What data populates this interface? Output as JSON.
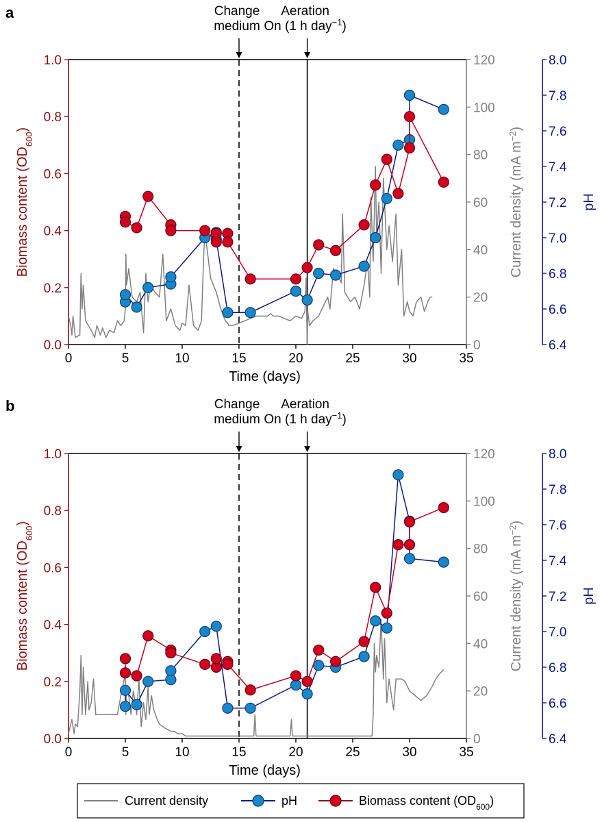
{
  "chart_data": [
    {
      "panel_label": "a",
      "type": "line",
      "xlabel": "Time (days)",
      "ylabel_left": "Biomass content (OD",
      "ylabel_left_sub": "600",
      "ylabel_left_end": ")",
      "ylabel_mid": "Current density (mA m",
      "ylabel_mid_sup": "−2",
      "ylabel_mid_end": ")",
      "ylabel_right": "pH",
      "xlim": [
        0,
        35
      ],
      "ylim_left": [
        0,
        1.0
      ],
      "ylim_mid": [
        0,
        120
      ],
      "ylim_right": [
        6.4,
        8.0
      ],
      "xticks": [
        "0",
        "5",
        "10",
        "15",
        "20",
        "25",
        "30",
        "35"
      ],
      "yticks_left": [
        "0.0",
        "0.2",
        "0.4",
        "0.6",
        "0.8",
        "1.0"
      ],
      "yticks_mid": [
        "0",
        "20",
        "40",
        "60",
        "80",
        "100",
        "120"
      ],
      "yticks_right": [
        "6.4",
        "6.6",
        "6.8",
        "7.0",
        "7.2",
        "7.4",
        "7.6",
        "7.8",
        "8.0"
      ],
      "annotations": [
        {
          "x": 15,
          "line_style": "dashed",
          "text_lines": [
            "Change",
            "medium"
          ]
        },
        {
          "x": 21,
          "line_style": "solid",
          "text_lines": [
            "Aeration",
            "On (1 h day"
          ],
          "sup": "−1",
          "end": ")"
        }
      ],
      "series": [
        {
          "name": "Biomass content (OD600)",
          "axis": "left",
          "color": "#c0001a",
          "x": [
            5,
            5,
            6,
            7,
            9,
            9,
            12,
            13,
            13,
            14,
            14,
            16,
            20,
            21,
            22,
            23.5,
            26,
            27,
            28,
            29,
            30,
            30,
            33
          ],
          "y": [
            0.45,
            0.43,
            0.41,
            0.52,
            0.42,
            0.4,
            0.4,
            0.36,
            0.39,
            0.39,
            0.36,
            0.23,
            0.23,
            0.27,
            0.35,
            0.33,
            0.42,
            0.56,
            0.65,
            0.53,
            0.69,
            0.8,
            0.57
          ],
          "path_order": [
            0,
            1,
            2,
            3,
            4,
            5,
            6,
            7,
            8,
            9,
            10,
            11,
            12,
            13,
            14,
            15,
            16,
            17,
            18,
            19,
            20,
            21,
            22
          ]
        },
        {
          "name": "pH",
          "axis": "right",
          "color": "#0b1a80",
          "x": [
            5,
            5,
            6,
            7,
            9,
            9,
            12,
            13,
            13,
            14,
            16,
            20,
            21,
            22,
            23.5,
            26,
            27,
            28,
            29,
            30,
            30,
            33
          ],
          "y": [
            6.64,
            6.68,
            6.61,
            6.72,
            6.74,
            6.78,
            7.0,
            7.03,
            6.99,
            6.58,
            6.58,
            6.7,
            6.65,
            6.8,
            6.79,
            6.84,
            7.0,
            7.22,
            7.52,
            7.55,
            7.8,
            7.72
          ],
          "path_order": [
            0,
            1,
            2,
            3,
            4,
            5,
            6,
            7,
            8,
            9,
            10,
            11,
            12,
            13,
            14,
            15,
            16,
            17,
            18,
            19,
            20,
            21
          ]
        },
        {
          "name": "Current density",
          "axis": "mid",
          "color": "#808080",
          "x": [
            0,
            0.2,
            0.3,
            0.4,
            0.6,
            1.0,
            1.1,
            1.2,
            1.3,
            1.5,
            2.0,
            2.3,
            2.5,
            2.8,
            3.0,
            3.3,
            3.6,
            4.0,
            4.3,
            4.6,
            4.9,
            5.0,
            5.05,
            5.1,
            5.3,
            5.6,
            6.0,
            6.3,
            6.6,
            6.8,
            7.0,
            7.2,
            7.6,
            8.0,
            8.3,
            8.6,
            9.0,
            9.4,
            9.8,
            10.0,
            10.3,
            10.6,
            11.0,
            11.4,
            11.7,
            11.9,
            12.0,
            12.2,
            12.5,
            13.0,
            13.4,
            13.8,
            14.0,
            14.1,
            14.4,
            15.0,
            15.5,
            16.0,
            16.5,
            17.0,
            17.5,
            17.8,
            18.0,
            18.5,
            19.0,
            19.5,
            20.0,
            20.5,
            20.8,
            20.9,
            21.0,
            21.05,
            21.2,
            21.5,
            22.0,
            22.4,
            22.8,
            23.0,
            23.3,
            23.6,
            24.0,
            24.1,
            24.3,
            24.8,
            25.2,
            25.6,
            26.0,
            26.3,
            26.5,
            26.6,
            26.8,
            27.0,
            27.1,
            27.3,
            27.5,
            27.7,
            28.0,
            28.2,
            28.5,
            28.8,
            29.0,
            29.3,
            29.5,
            29.8,
            30.0,
            30.3,
            30.6,
            31.0,
            31.3,
            31.6,
            31.8,
            32.0
          ],
          "y": [
            12,
            8,
            4,
            12,
            3,
            4,
            30,
            15,
            25,
            10,
            6,
            3,
            8,
            4,
            7,
            3,
            6,
            5,
            10,
            8,
            10,
            15,
            38,
            25,
            32,
            20,
            18,
            22,
            5,
            30,
            18,
            25,
            22,
            20,
            38,
            10,
            15,
            8,
            6,
            9,
            8,
            25,
            8,
            6,
            10,
            38,
            48,
            40,
            28,
            22,
            15,
            10,
            9,
            8,
            8,
            9,
            10,
            11,
            12,
            12,
            12,
            13,
            12,
            12,
            11,
            10,
            12,
            11,
            14,
            28,
            0,
            14,
            8,
            10,
            12,
            16,
            20,
            15,
            32,
            30,
            26,
            55,
            22,
            18,
            20,
            15,
            25,
            35,
            20,
            62,
            35,
            75,
            45,
            60,
            30,
            70,
            40,
            50,
            35,
            55,
            25,
            40,
            12,
            18,
            14,
            12,
            18,
            20,
            14,
            18,
            20,
            20
          ]
        }
      ]
    },
    {
      "panel_label": "b",
      "type": "line",
      "xlabel": "Time (days)",
      "ylabel_left": "Biomass content (OD",
      "ylabel_left_sub": "600",
      "ylabel_left_end": ")",
      "ylabel_mid": "Current density (mA m",
      "ylabel_mid_sup": "−2",
      "ylabel_mid_end": ")",
      "ylabel_right": "pH",
      "xlim": [
        0,
        35
      ],
      "ylim_left": [
        0,
        1.0
      ],
      "ylim_mid": [
        0,
        120
      ],
      "ylim_right": [
        6.4,
        8.0
      ],
      "xticks": [
        "0",
        "5",
        "10",
        "15",
        "20",
        "25",
        "30",
        "35"
      ],
      "yticks_left": [
        "0.0",
        "0.2",
        "0.4",
        "0.6",
        "0.8",
        "1.0"
      ],
      "yticks_mid": [
        "0",
        "20",
        "40",
        "60",
        "80",
        "100",
        "120"
      ],
      "yticks_right": [
        "6.4",
        "6.6",
        "6.8",
        "7.0",
        "7.2",
        "7.4",
        "7.6",
        "7.8",
        "8.0"
      ],
      "annotations": [
        {
          "x": 15,
          "line_style": "dashed",
          "text_lines": [
            "Change",
            "medium"
          ]
        },
        {
          "x": 21,
          "line_style": "solid",
          "text_lines": [
            "Aeration",
            "On (1 h day"
          ],
          "sup": "−1",
          "end": ")"
        }
      ],
      "series": [
        {
          "name": "Biomass content (OD600)",
          "axis": "left",
          "color": "#c0001a",
          "x": [
            5,
            5,
            6,
            7,
            9,
            9,
            12,
            13,
            13,
            14,
            14,
            16,
            20,
            21,
            22,
            23.5,
            26,
            27,
            28,
            29,
            30,
            30,
            33
          ],
          "y": [
            0.28,
            0.23,
            0.22,
            0.36,
            0.31,
            0.3,
            0.26,
            0.25,
            0.28,
            0.27,
            0.26,
            0.17,
            0.22,
            0.2,
            0.31,
            0.27,
            0.34,
            0.53,
            0.44,
            0.68,
            0.68,
            0.76,
            0.81
          ],
          "path_order": [
            0,
            1,
            2,
            3,
            4,
            5,
            6,
            7,
            8,
            9,
            10,
            11,
            12,
            13,
            14,
            15,
            16,
            17,
            18,
            19,
            20,
            21,
            22
          ]
        },
        {
          "name": "pH",
          "axis": "right",
          "color": "#0b1a80",
          "x": [
            5,
            5,
            6,
            7,
            9,
            9,
            12,
            13,
            14,
            16,
            20,
            21,
            22,
            23.5,
            26,
            27,
            28,
            29,
            30,
            30,
            33
          ],
          "y": [
            6.58,
            6.67,
            6.59,
            6.72,
            6.73,
            6.78,
            7.0,
            7.03,
            6.57,
            6.57,
            6.7,
            6.65,
            6.81,
            6.8,
            6.86,
            7.06,
            7.02,
            7.88,
            7.62,
            7.41,
            7.39
          ],
          "path_order": [
            0,
            1,
            2,
            3,
            4,
            5,
            6,
            7,
            8,
            9,
            10,
            11,
            12,
            13,
            14,
            15,
            16,
            17,
            18,
            19,
            20
          ]
        },
        {
          "name": "Current density",
          "axis": "mid",
          "color": "#808080",
          "x": [
            0,
            0.3,
            0.5,
            0.6,
            0.8,
            1.0,
            1.1,
            1.2,
            1.3,
            1.5,
            1.7,
            1.8,
            2.0,
            2.2,
            2.4,
            2.6,
            3.0,
            3.5,
            4.0,
            4.3,
            4.6,
            4.9,
            5.0,
            5.05,
            5.1,
            5.3,
            5.5,
            5.7,
            5.9,
            6.0,
            6.2,
            6.4,
            6.6,
            6.8,
            7.0,
            7.1,
            7.3,
            7.5,
            7.8,
            8.0,
            8.3,
            8.6,
            9.0,
            9.3,
            9.6,
            10.0,
            10.3,
            10.6,
            11.0,
            11.5,
            12.0,
            12.5,
            13.0,
            13.5,
            14.0,
            15.0,
            16.0,
            16.3,
            16.4,
            16.5,
            17.0,
            18.0,
            19.0,
            19.5,
            19.6,
            19.7,
            20.0,
            21.0,
            22.0,
            23.0,
            24.0,
            25.0,
            26.0,
            26.7,
            26.8,
            26.9,
            27.0,
            27.1,
            27.3,
            27.5,
            27.7,
            27.8,
            28.0,
            28.2,
            28.5,
            28.6,
            28.8,
            29.0,
            29.3,
            29.6,
            30.0,
            30.5,
            31.0,
            31.5,
            32.0,
            32.3,
            32.6,
            33.0
          ],
          "y": [
            2,
            8,
            2,
            6,
            5,
            20,
            35,
            10,
            30,
            10,
            24,
            12,
            15,
            25,
            10,
            10,
            10,
            10,
            10,
            10,
            18,
            25,
            30,
            10,
            22,
            18,
            10,
            20,
            15,
            10,
            25,
            5,
            15,
            8,
            22,
            10,
            18,
            12,
            8,
            6,
            5,
            4,
            3,
            3,
            2,
            2,
            1,
            1,
            1,
            1,
            1,
            1,
            1,
            1,
            1,
            1,
            1,
            1,
            10,
            1,
            1,
            1,
            1,
            1,
            8,
            1,
            1,
            1,
            1,
            1,
            1,
            1,
            1,
            1,
            10,
            40,
            28,
            35,
            30,
            50,
            25,
            42,
            15,
            25,
            15,
            12,
            25,
            25,
            25,
            24,
            20,
            18,
            16,
            18,
            22,
            25,
            27,
            29
          ]
        }
      ]
    }
  ],
  "legend": {
    "items": [
      {
        "label": "Current density",
        "kind": "line",
        "color": "#808080"
      },
      {
        "label": "pH",
        "kind": "line-marker",
        "color": "#0b1a80",
        "marker": "#1a87c6"
      },
      {
        "label": "Biomass content (OD",
        "sub": "600",
        "end": ")",
        "kind": "line-marker",
        "color": "#8b1010",
        "marker": "#d0001e"
      }
    ]
  }
}
